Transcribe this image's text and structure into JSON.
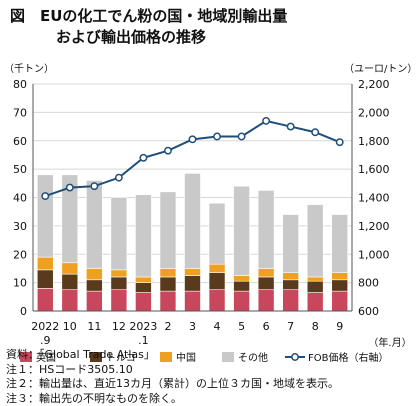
{
  "title": {
    "line1": "図　EUの化工でん粉の国・地域別輸出量",
    "line2": "および輸出価格の推移"
  },
  "chart_data": {
    "type": "bar",
    "stacked": true,
    "categories": [
      "2022\n.9",
      "10",
      "11",
      "12",
      "2023\n.1",
      "2",
      "3",
      "4",
      "5",
      "6",
      "7",
      "8",
      "9"
    ],
    "xlabel": "（年.月）",
    "ylabel_left": "（千トン）",
    "ylabel_right": "（ユーロ/トン）",
    "ylim_left": [
      0,
      80
    ],
    "yticks_left": [
      0,
      10,
      20,
      30,
      40,
      50,
      60,
      70,
      80
    ],
    "ylim_right": [
      600,
      2200
    ],
    "yticks_right": [
      "600",
      "800",
      "1,000",
      "1,200",
      "1,400",
      "1,600",
      "1,800",
      "2,000",
      "2,200"
    ],
    "grid": true,
    "legend_position": "bottom",
    "series": [
      {
        "name": "英国",
        "color": "#c8475c",
        "axis": "left",
        "values": [
          8,
          7.5,
          7,
          7.5,
          6.5,
          7,
          7,
          7.5,
          7,
          7.5,
          7.5,
          6.5,
          7
        ]
      },
      {
        "name": "トルコ",
        "color": "#5a3a1c",
        "axis": "left",
        "values": [
          6.5,
          5.5,
          4,
          4.5,
          3.5,
          5,
          5.5,
          6,
          3.5,
          4.5,
          3.5,
          4,
          4
        ]
      },
      {
        "name": "中国",
        "color": "#f0a020",
        "axis": "left",
        "values": [
          4.5,
          4,
          4,
          2.5,
          2,
          3,
          2.5,
          3,
          2,
          3,
          2.5,
          1.5,
          2.5
        ]
      },
      {
        "name": "その他",
        "color": "#c9c9c9",
        "axis": "left",
        "values": [
          29,
          31,
          31,
          25.5,
          29,
          27,
          33.5,
          21.5,
          31.5,
          27.5,
          20.5,
          25.5,
          20.5
        ]
      },
      {
        "name": "FOB価格（右軸）",
        "type": "line",
        "color": "#1f4e79",
        "axis": "right",
        "values": [
          1410,
          1470,
          1480,
          1540,
          1680,
          1730,
          1810,
          1830,
          1830,
          1940,
          1900,
          1860,
          1790
        ]
      }
    ]
  },
  "notes": [
    "資料：「Global Trade Atlas」",
    "注１：HSコード3505.10",
    "注２：輸出量は、直近13カ月（累計）の上位３カ国・地域を表示。",
    "注３：輸出先の不明なものを除く。"
  ]
}
